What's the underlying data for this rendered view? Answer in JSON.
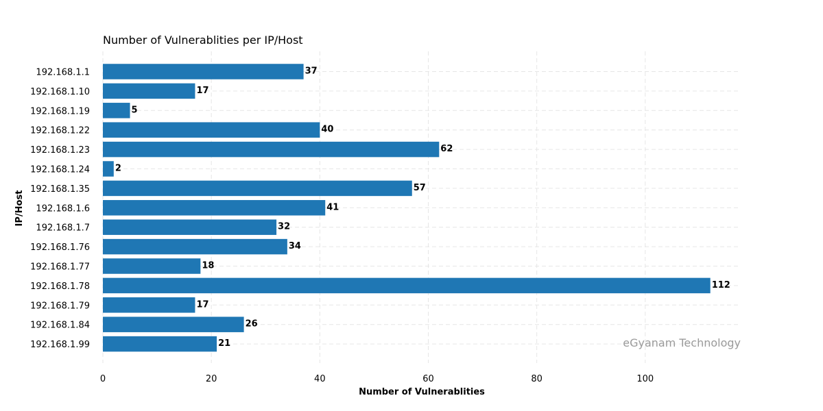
{
  "chart_data": {
    "type": "bar",
    "orientation": "horizontal",
    "title": "Number of Vulnerablities per IP/Host",
    "xlabel": "Number of Vulnerablities",
    "ylabel": "IP/Host",
    "categories": [
      "192.168.1.1",
      "192.168.1.10",
      "192.168.1.19",
      "192.168.1.22",
      "192.168.1.23",
      "192.168.1.24",
      "192.168.1.35",
      "192.168.1.6",
      "192.168.1.7",
      "192.168.1.76",
      "192.168.1.77",
      "192.168.1.78",
      "192.168.1.79",
      "192.168.1.84",
      "192.168.1.99"
    ],
    "values": [
      37,
      17,
      5,
      40,
      62,
      2,
      57,
      41,
      32,
      34,
      18,
      112,
      17,
      26,
      21
    ],
    "xlim": [
      0,
      117.6
    ],
    "xticks": [
      0,
      20,
      40,
      60,
      80,
      100
    ],
    "grid": true,
    "bar_color": "#1f77b4",
    "watermark": "eGyanam Technology"
  }
}
